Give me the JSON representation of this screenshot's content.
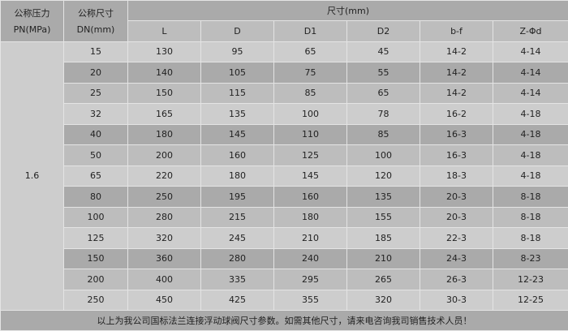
{
  "header": {
    "pressure_cn": "公称压力",
    "pressure_unit": "PN(MPa)",
    "dn_cn": "公称尺寸",
    "dn_unit": "DN(mm)",
    "size_group": "尺寸(mm)",
    "columns": [
      "L",
      "D",
      "D1",
      "D2",
      "b-f",
      "Z-Φd"
    ]
  },
  "pressure_value": "1.6",
  "rows": [
    [
      "15",
      "130",
      "95",
      "65",
      "45",
      "14-2",
      "4-14"
    ],
    [
      "20",
      "140",
      "105",
      "75",
      "55",
      "14-2",
      "4-14"
    ],
    [
      "25",
      "150",
      "115",
      "85",
      "65",
      "14-2",
      "4-14"
    ],
    [
      "32",
      "165",
      "135",
      "100",
      "78",
      "16-2",
      "4-18"
    ],
    [
      "40",
      "180",
      "145",
      "110",
      "85",
      "16-3",
      "4-18"
    ],
    [
      "50",
      "200",
      "160",
      "125",
      "100",
      "16-3",
      "4-18"
    ],
    [
      "65",
      "220",
      "180",
      "145",
      "120",
      "18-3",
      "4-18"
    ],
    [
      "80",
      "250",
      "195",
      "160",
      "135",
      "20-3",
      "8-18"
    ],
    [
      "100",
      "280",
      "215",
      "180",
      "155",
      "20-3",
      "8-18"
    ],
    [
      "125",
      "320",
      "245",
      "210",
      "185",
      "22-3",
      "8-18"
    ],
    [
      "150",
      "360",
      "280",
      "240",
      "210",
      "24-3",
      "8-23"
    ],
    [
      "200",
      "400",
      "335",
      "295",
      "265",
      "26-3",
      "12-23"
    ],
    [
      "250",
      "450",
      "425",
      "355",
      "320",
      "30-3",
      "12-25"
    ]
  ],
  "footer": "以上为我公司国标法兰连接浮动球阀尺寸参数。如需其他尺寸，请来电咨询我司销售技术人员！"
}
